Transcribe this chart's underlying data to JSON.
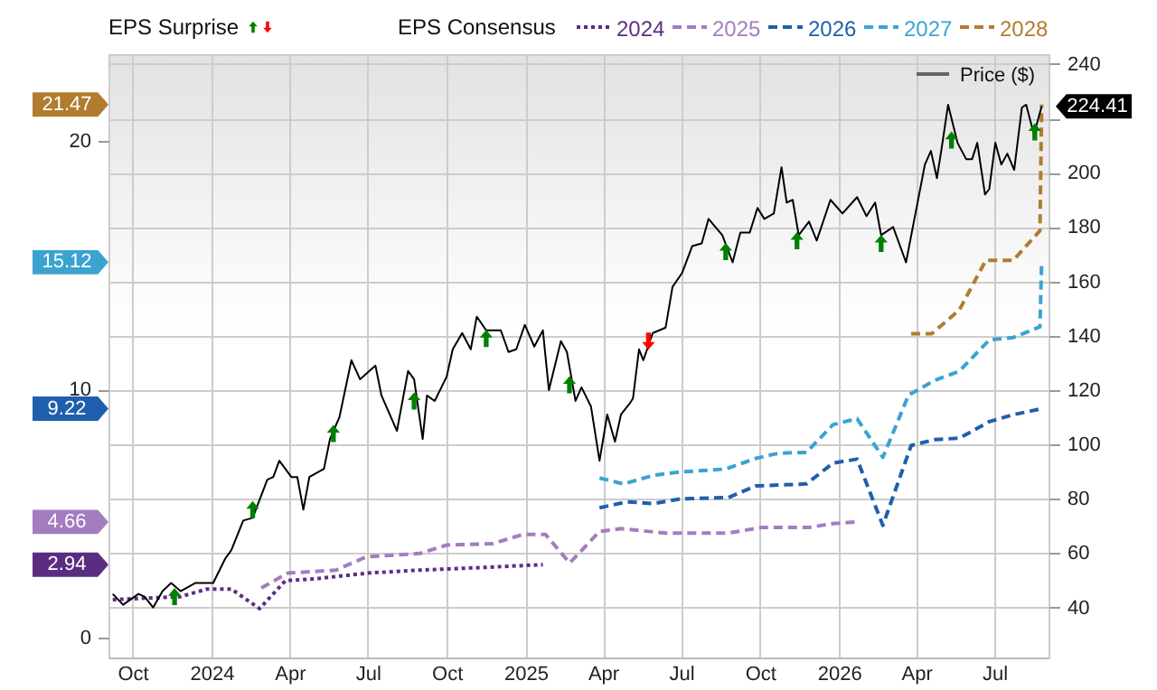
{
  "chart_data": {
    "type": "line",
    "legend_title": "EPS Consensus",
    "annotations": [
      "EPS Surprise",
      {
        "text": "21.47",
        "y": 21.47
      },
      {
        "text": "15.12",
        "y": 15.12
      },
      {
        "text": "9.22",
        "y": 9.22
      },
      {
        "text": "4.66",
        "y": 4.66
      },
      {
        "text": "2.94",
        "y": 2.94
      }
    ],
    "legend": "top",
    "grid": true,
    "xlim": [
      "2023-09-03",
      "2026-09-02"
    ],
    "xticks": [
      {
        "value": "2023-10-01",
        "label": "Oct"
      },
      {
        "value": "2024-01-01",
        "label": "2024"
      },
      {
        "value": "2024-04-01",
        "label": "Apr"
      },
      {
        "value": "2024-07-01",
        "label": "Jul"
      },
      {
        "value": "2024-10-01",
        "label": "Oct"
      },
      {
        "value": "2025-01-01",
        "label": "2025"
      },
      {
        "value": "2025-04-01",
        "label": "Apr"
      },
      {
        "value": "2025-07-01",
        "label": "Jul"
      },
      {
        "value": "2025-10-01",
        "label": "Oct"
      },
      {
        "value": "2026-01-01",
        "label": "2026"
      },
      {
        "value": "2026-04-01",
        "label": "Apr"
      },
      {
        "value": "2026-07-01",
        "label": "Jul"
      }
    ],
    "ylim": [
      -0.8,
      23.5
    ],
    "yticks": [
      0,
      10,
      20
    ],
    "y2lim": [
      21.6,
      243.6
    ],
    "y2ticks": [
      40,
      60,
      80,
      100,
      120,
      140,
      160,
      180,
      200,
      {
        "value": 220,
        "label": null
      },
      240
    ],
    "series": [
      {
        "name": "2024",
        "color": "#5a2d82",
        "type": "line",
        "line_style": "dotted",
        "x": [
          "2023-09-08",
          "2023-11-26",
          "2023-12-27",
          "2024-01-24",
          "2024-02-26",
          "2024-03-27",
          "2024-05-01",
          "2024-07-01",
          "2024-08-31",
          "2024-11-09",
          "2025-01-21"
        ],
        "values": [
          1.53,
          1.65,
          1.96,
          1.96,
          1.17,
          2.29,
          2.37,
          2.6,
          2.72,
          2.82,
          2.94
        ]
      },
      {
        "name": "2025",
        "color": "#a47cc0",
        "type": "line",
        "line_style": "dashed",
        "x": [
          "2024-02-28",
          "2024-03-30",
          "2024-05-25",
          "2024-06-29",
          "2024-08-31",
          "2024-10-01",
          "2024-11-23",
          "2024-12-29",
          "2025-01-24",
          "2025-02-21",
          "2025-02-28",
          "2025-03-28",
          "2025-04-22",
          "2025-06-13",
          "2025-08-25",
          "2025-10-03",
          "2025-11-27",
          "2025-12-25",
          "2026-01-22"
        ],
        "values": [
          2.0,
          2.6,
          2.72,
          3.25,
          3.39,
          3.73,
          3.78,
          4.16,
          4.16,
          3.01,
          3.25,
          4.28,
          4.39,
          4.21,
          4.21,
          4.44,
          4.44,
          4.59,
          4.66
        ]
      },
      {
        "name": "2026",
        "color": "#1f5fad",
        "type": "line",
        "line_style": "dashed",
        "x": [
          "2025-03-28",
          "2025-04-29",
          "2025-05-30",
          "2025-06-30",
          "2025-08-25",
          "2025-09-26",
          "2025-11-24",
          "2025-12-25",
          "2026-01-22",
          "2026-02-21",
          "2026-03-26",
          "2026-04-23",
          "2026-05-21",
          "2026-06-25",
          "2026-07-23",
          "2026-08-25"
        ],
        "values": [
          5.23,
          5.47,
          5.4,
          5.59,
          5.64,
          6.11,
          6.19,
          7.03,
          7.19,
          4.52,
          7.74,
          7.98,
          8.03,
          8.7,
          8.98,
          9.22
        ]
      },
      {
        "name": "2027",
        "color": "#3ba3d0",
        "type": "line",
        "line_style": "dashed",
        "x": [
          "2025-03-28",
          "2025-04-25",
          "2025-05-30",
          "2025-06-30",
          "2025-08-22",
          "2025-09-26",
          "2025-10-23",
          "2025-11-24",
          "2025-12-25",
          "2026-01-22",
          "2026-02-21",
          "2026-03-23",
          "2026-04-23",
          "2026-05-21",
          "2026-06-25",
          "2026-07-23",
          "2026-08-23",
          "2026-08-25"
        ],
        "values": [
          6.43,
          6.19,
          6.54,
          6.67,
          6.79,
          7.22,
          7.43,
          7.46,
          8.58,
          8.82,
          7.26,
          9.77,
          10.37,
          10.73,
          11.99,
          12.09,
          12.52,
          15.12
        ]
      },
      {
        "name": "2028",
        "color": "#b07c2f",
        "type": "line",
        "line_style": "dashed",
        "x": [
          "2026-03-26",
          "2026-04-19",
          "2026-05-21",
          "2026-06-21",
          "2026-07-23",
          "2026-08-23",
          "2026-08-25"
        ],
        "values": [
          12.24,
          12.24,
          13.19,
          15.2,
          15.2,
          16.39,
          21.47
        ]
      },
      {
        "name": "Price ($)",
        "color": "#000000",
        "type": "line",
        "line_style": "solid",
        "axis": "y2",
        "x": [
          "2023-09-08",
          "2023-09-20",
          "2023-10-08",
          "2023-10-15",
          "2023-10-25",
          "2023-11-05",
          "2023-11-15",
          "2023-11-26",
          "2023-12-13",
          "2023-12-27",
          "2024-01-03",
          "2024-01-17",
          "2024-01-24",
          "2024-02-07",
          "2024-02-18",
          "2024-03-06",
          "2024-03-13",
          "2024-03-20",
          "2024-04-03",
          "2024-04-10",
          "2024-04-17",
          "2024-04-24",
          "2024-05-11",
          "2024-05-18",
          "2024-05-29",
          "2024-06-12",
          "2024-06-22",
          "2024-07-10",
          "2024-07-17",
          "2024-08-04",
          "2024-08-17",
          "2024-08-24",
          "2024-09-03",
          "2024-09-08",
          "2024-09-17",
          "2024-10-01",
          "2024-10-08",
          "2024-10-19",
          "2024-10-29",
          "2024-11-05",
          "2024-11-16",
          "2024-11-24",
          "2024-12-03",
          "2024-12-12",
          "2024-12-21",
          "2024-12-31",
          "2025-01-11",
          "2025-01-21",
          "2025-01-28",
          "2025-02-11",
          "2025-02-18",
          "2025-02-28",
          "2025-03-07",
          "2025-03-18",
          "2025-03-28",
          "2025-04-06",
          "2025-04-15",
          "2025-04-22",
          "2025-05-02",
          "2025-05-06",
          "2025-05-13",
          "2025-05-18",
          "2025-05-29",
          "2025-06-13",
          "2025-06-21",
          "2025-07-02",
          "2025-07-14",
          "2025-07-25",
          "2025-08-02",
          "2025-08-18",
          "2025-08-30",
          "2025-09-08",
          "2025-09-19",
          "2025-09-28",
          "2025-10-06",
          "2025-10-17",
          "2025-10-26",
          "2025-11-01",
          "2025-11-08",
          "2025-11-15",
          "2025-11-27",
          "2025-12-06",
          "2025-12-22",
          "2026-01-05",
          "2026-01-22",
          "2026-02-02",
          "2026-02-12",
          "2026-02-19",
          "2026-03-05",
          "2026-03-20",
          "2026-03-31",
          "2026-04-11",
          "2026-04-18",
          "2026-04-25",
          "2026-05-01",
          "2026-05-08",
          "2026-05-19",
          "2026-05-29",
          "2026-06-05",
          "2026-06-11",
          "2026-06-20",
          "2026-06-25",
          "2026-07-02",
          "2026-07-09",
          "2026-07-16",
          "2026-07-24",
          "2026-08-02",
          "2026-08-07",
          "2026-08-16",
          "2026-08-25"
        ],
        "values": [
          45,
          41,
          45,
          44,
          40,
          46,
          49,
          46,
          49,
          49,
          49,
          58,
          61,
          72,
          73,
          87,
          88,
          94,
          88,
          88,
          76,
          88,
          91,
          102,
          110,
          131,
          124,
          129,
          118,
          105,
          127,
          124,
          102,
          118,
          116,
          125,
          135,
          141,
          135,
          147,
          142,
          142,
          142,
          134,
          135,
          144,
          136,
          142,
          120,
          138,
          134,
          116,
          121,
          114,
          94,
          111,
          101,
          111,
          115,
          117,
          135,
          131,
          141,
          143,
          158,
          163,
          173,
          174,
          183,
          177,
          167,
          178,
          178,
          187,
          183,
          185,
          202,
          189,
          190,
          177,
          182,
          175,
          190,
          185,
          191,
          184,
          189,
          177,
          180,
          167,
          185,
          203,
          208,
          198,
          210,
          225,
          211,
          205,
          205,
          211,
          192,
          194,
          211,
          203,
          207,
          201,
          224,
          225,
          214,
          224.41
        ],
        "value_labels": [
          null,
          null,
          null,
          null,
          null,
          null,
          null,
          null,
          null,
          null,
          null,
          null,
          null,
          null,
          null,
          null,
          null,
          null,
          null,
          null,
          null,
          null,
          null,
          null,
          null,
          null,
          null,
          null,
          null,
          null,
          null,
          null,
          null,
          null,
          null,
          null,
          null,
          null,
          null,
          null,
          null,
          null,
          null,
          null,
          null,
          null,
          null,
          null,
          null,
          null,
          null,
          null,
          null,
          null,
          null,
          null,
          null,
          null,
          null,
          null,
          null,
          null,
          null,
          null,
          null,
          null,
          null,
          null,
          null,
          null,
          null,
          null,
          null,
          null,
          null,
          null,
          null,
          null,
          null,
          null,
          null,
          null,
          null,
          null,
          null,
          null,
          null,
          null,
          null,
          null,
          null,
          null,
          null,
          null,
          null,
          null,
          null,
          null,
          null,
          null,
          null,
          null,
          null,
          null,
          null,
          null,
          null,
          null,
          null,
          "224.41"
        ]
      },
      {
        "color": "#008000",
        "type": "scatter",
        "axis": "y2",
        "marker": "triangle",
        "x": [
          "2023-11-19",
          "2024-02-18",
          "2024-05-22",
          "2024-08-24",
          "2024-11-16",
          "2025-02-21",
          "2025-08-22",
          "2025-11-13",
          "2026-02-19",
          "2026-05-12",
          "2026-08-17"
        ],
        "values": [
          44,
          76,
          104,
          116,
          139,
          122,
          171,
          175,
          174,
          212,
          215
        ]
      },
      {
        "color": "#ff0000",
        "type": "scatter",
        "axis": "y2",
        "marker": "triangle",
        "x": [
          "2025-05-24"
        ],
        "values": [
          138
        ]
      }
    ]
  }
}
